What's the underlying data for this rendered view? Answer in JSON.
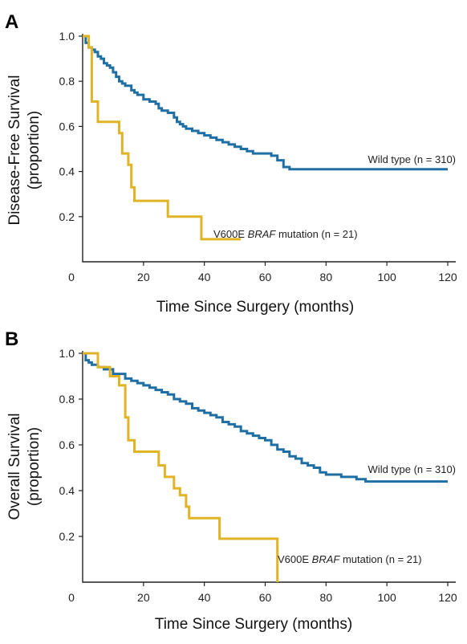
{
  "chart_data": [
    {
      "panel": "A",
      "type": "line",
      "style": "step",
      "xlabel": "Time Since Surgery (months)",
      "ylabel": [
        "Disease-Free Survival",
        "(proportion)"
      ],
      "xlim": [
        0,
        120
      ],
      "ylim": [
        0,
        1.0
      ],
      "xticks": [
        0,
        20,
        40,
        60,
        80,
        100,
        120
      ],
      "yticks": [
        0.2,
        0.4,
        0.6,
        0.8,
        1.0
      ],
      "ytick_labels": [
        "0.2",
        "0.4",
        "0.6",
        "0.8",
        "1.0"
      ],
      "series": [
        {
          "label_parts": [
            "Wild type (n = 310)"
          ],
          "color": "#1f6fa5",
          "x": [
            0,
            1,
            2,
            3,
            4,
            5,
            6,
            7,
            8,
            9,
            10,
            11,
            12,
            13,
            14,
            16,
            17,
            18,
            20,
            22,
            24,
            25,
            26,
            28,
            30,
            31,
            32,
            33,
            34,
            36,
            38,
            40,
            42,
            44,
            46,
            48,
            50,
            52,
            54,
            56,
            58,
            60,
            62,
            64,
            66,
            68,
            70,
            80,
            100,
            120
          ],
          "y": [
            1.0,
            0.97,
            0.95,
            0.94,
            0.93,
            0.91,
            0.9,
            0.88,
            0.87,
            0.86,
            0.84,
            0.82,
            0.8,
            0.79,
            0.78,
            0.76,
            0.75,
            0.74,
            0.72,
            0.71,
            0.7,
            0.68,
            0.67,
            0.66,
            0.64,
            0.62,
            0.61,
            0.6,
            0.59,
            0.58,
            0.57,
            0.56,
            0.55,
            0.54,
            0.53,
            0.52,
            0.51,
            0.5,
            0.49,
            0.48,
            0.48,
            0.48,
            0.47,
            0.45,
            0.42,
            0.41,
            0.41,
            0.41,
            0.41,
            0.41
          ]
        },
        {
          "label_parts": [
            "V600E ",
            "BRAF",
            " mutation (n = 21)"
          ],
          "color": "#e0b424",
          "x": [
            0,
            2,
            3,
            5,
            12,
            13,
            15,
            16,
            17,
            28,
            39,
            52
          ],
          "y": [
            1.0,
            0.95,
            0.71,
            0.62,
            0.57,
            0.48,
            0.43,
            0.33,
            0.27,
            0.2,
            0.1,
            0.1
          ]
        }
      ]
    },
    {
      "panel": "B",
      "type": "line",
      "style": "step",
      "xlabel": "Time Since Surgery (months)",
      "ylabel": [
        "Overall Survival",
        "(proportion)"
      ],
      "xlim": [
        0,
        120
      ],
      "ylim": [
        0,
        1.0
      ],
      "xticks": [
        0,
        20,
        40,
        60,
        80,
        100,
        120
      ],
      "yticks": [
        0.2,
        0.4,
        0.6,
        0.8,
        1.0
      ],
      "ytick_labels": [
        "0.2",
        "0.4",
        "0.6",
        "0.8",
        "1.0"
      ],
      "series": [
        {
          "label_parts": [
            "Wild type (n = 310)"
          ],
          "color": "#1f6fa5",
          "x": [
            0,
            1,
            2,
            3,
            5,
            7,
            10,
            14,
            16,
            18,
            20,
            22,
            24,
            26,
            28,
            30,
            32,
            34,
            36,
            38,
            40,
            42,
            44,
            46,
            48,
            50,
            52,
            54,
            56,
            58,
            60,
            62,
            64,
            66,
            68,
            70,
            72,
            74,
            76,
            78,
            80,
            85,
            90,
            93,
            100,
            110,
            120
          ],
          "y": [
            1.0,
            0.97,
            0.96,
            0.95,
            0.94,
            0.93,
            0.91,
            0.89,
            0.88,
            0.87,
            0.86,
            0.85,
            0.84,
            0.83,
            0.82,
            0.8,
            0.79,
            0.78,
            0.76,
            0.75,
            0.74,
            0.73,
            0.72,
            0.7,
            0.69,
            0.68,
            0.66,
            0.65,
            0.64,
            0.63,
            0.62,
            0.6,
            0.58,
            0.57,
            0.55,
            0.54,
            0.52,
            0.51,
            0.5,
            0.48,
            0.47,
            0.46,
            0.45,
            0.44,
            0.44,
            0.44,
            0.44
          ]
        },
        {
          "label_parts": [
            "V600E ",
            "BRAF",
            " mutation (n = 21)"
          ],
          "color": "#e0b424",
          "x": [
            0,
            5,
            9,
            12,
            14,
            15,
            17,
            25,
            27,
            30,
            32,
            34,
            35,
            45,
            64
          ],
          "y": [
            1.0,
            0.94,
            0.9,
            0.86,
            0.72,
            0.62,
            0.57,
            0.51,
            0.46,
            0.41,
            0.38,
            0.33,
            0.28,
            0.19,
            0.0
          ]
        }
      ]
    }
  ]
}
